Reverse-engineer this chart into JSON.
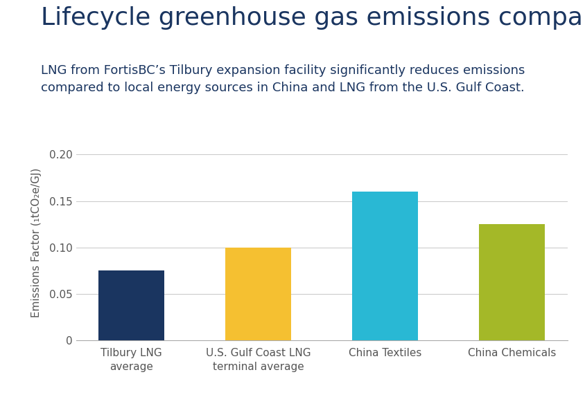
{
  "title": "Lifecycle greenhouse gas emissions comparison",
  "subtitle": "LNG from FortisBC’s Tilbury expansion facility significantly reduces emissions\ncompared to local energy sources in China and LNG from the U.S. Gulf Coast.",
  "categories": [
    "Tilbury LNG\naverage",
    "U.S. Gulf Coast LNG\nterminal average",
    "China Textiles",
    "China Chemicals"
  ],
  "values": [
    0.075,
    0.1,
    0.16,
    0.125
  ],
  "bar_colors": [
    "#1a3560",
    "#f5c031",
    "#29b8d4",
    "#a4b828"
  ],
  "ylabel": "Emissions Factor (₁tCO₂e/GJ)",
  "ylim": [
    0,
    0.21
  ],
  "yticks": [
    0,
    0.05,
    0.1,
    0.15,
    0.2
  ],
  "ytick_labels": [
    "0",
    "0.05",
    "0.10",
    "0.15",
    "0.20"
  ],
  "title_color": "#1a3560",
  "subtitle_color": "#1a3560",
  "title_fontsize": 26,
  "subtitle_fontsize": 13,
  "ylabel_fontsize": 11,
  "tick_fontsize": 11,
  "background_color": "#ffffff",
  "grid_color": "#cccccc"
}
